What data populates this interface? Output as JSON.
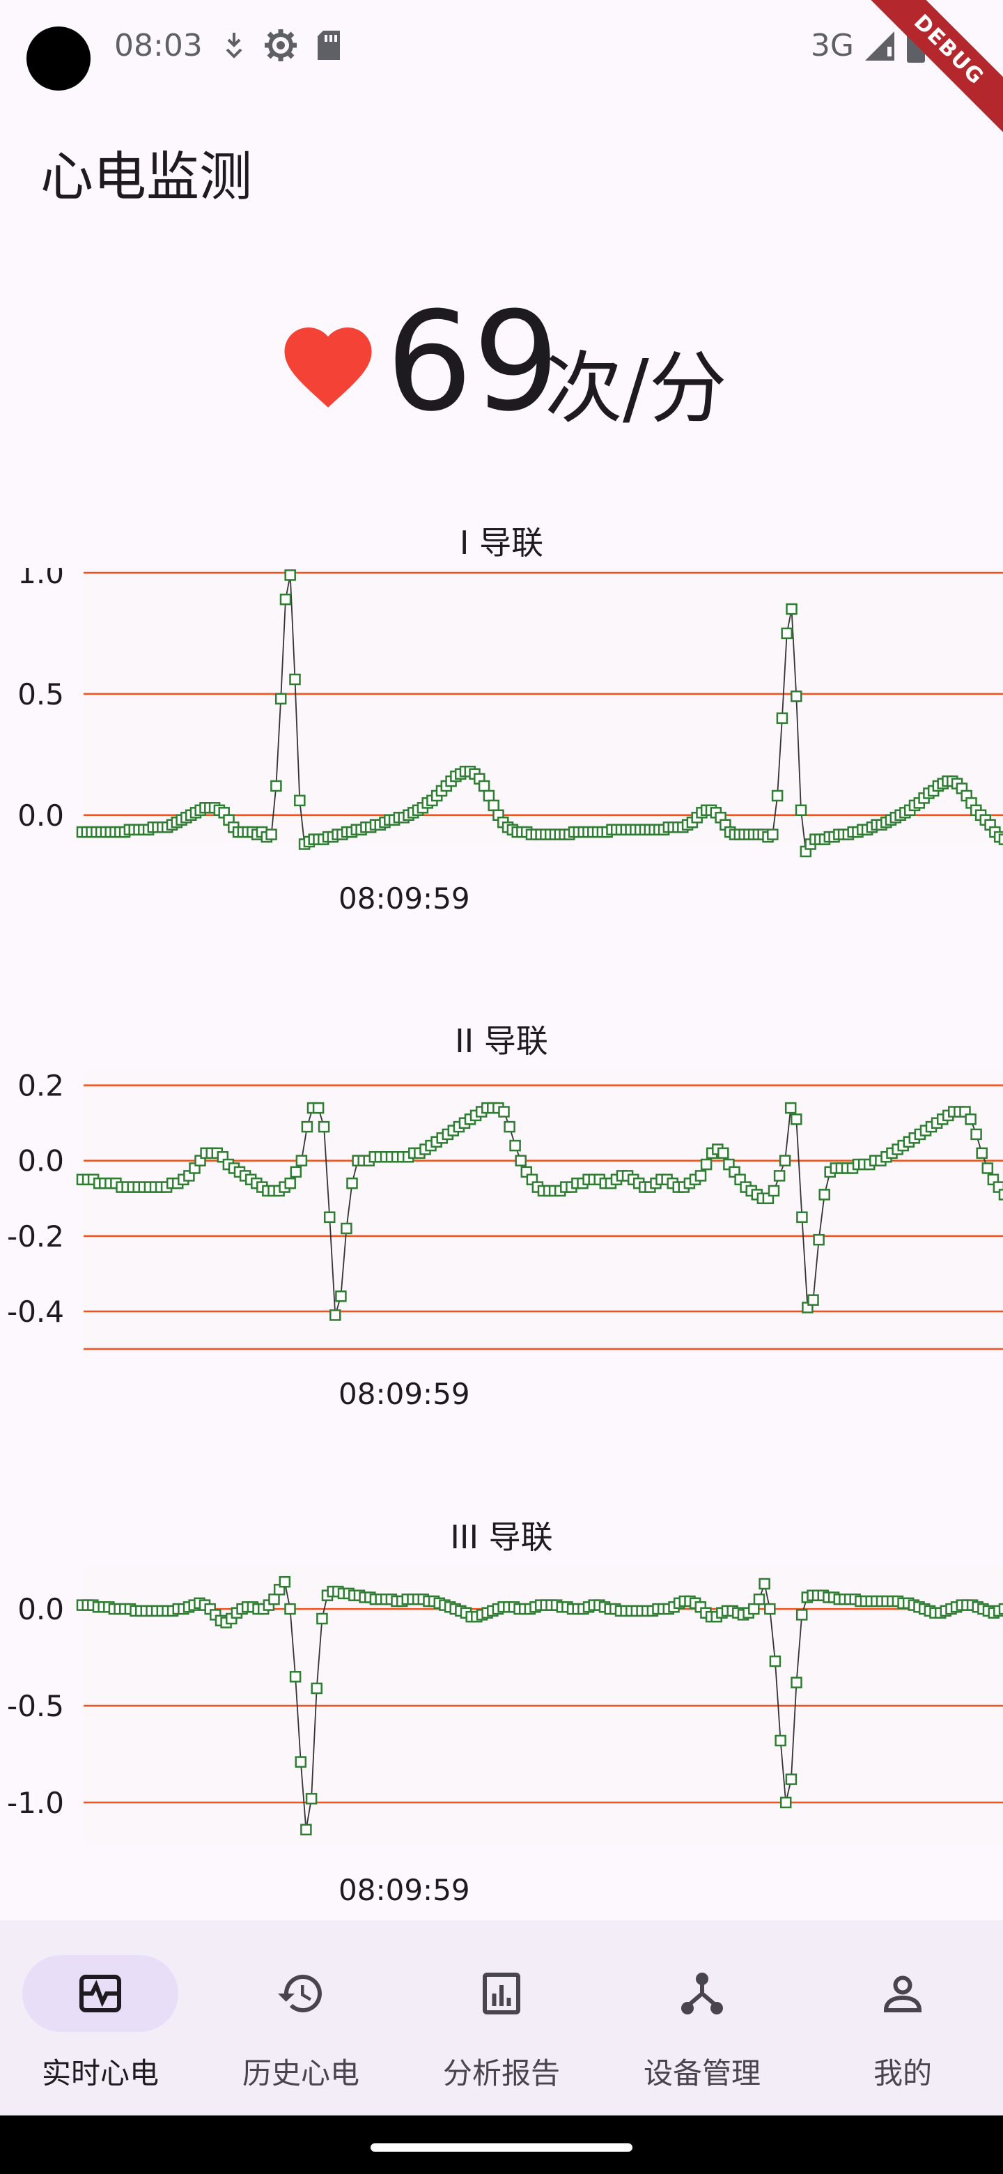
{
  "status_bar": {
    "time": "08:03",
    "network": "3G",
    "debug_banner": "DEBUG",
    "icons": [
      "download-icon",
      "settings-icon",
      "sd-card-icon",
      "signal-icon",
      "battery-icon"
    ]
  },
  "app": {
    "title": "心电监测"
  },
  "heart_rate": {
    "value": "69",
    "unit": "次/分",
    "icon": "heart-icon",
    "color": "#F44336"
  },
  "colors": {
    "series": "#2E7D32",
    "gridline": "#F4511E",
    "nav_active": "#E8DEF8",
    "nav_background": "#F3EDF7"
  },
  "chart_data": [
    {
      "type": "line",
      "title": "I 导联",
      "xlabel": "08:09:59",
      "y_ticks": [
        "1.0",
        "0.5",
        "0.0"
      ],
      "y_tick_values": [
        1.0,
        0.5,
        0.0
      ],
      "ylim": [
        -0.13,
        1.02
      ],
      "marker": "square",
      "series": [
        {
          "values": [
            -0.07,
            -0.07,
            -0.07,
            -0.07,
            -0.07,
            -0.07,
            -0.07,
            -0.07,
            -0.07,
            -0.07,
            -0.06,
            -0.06,
            -0.06,
            -0.06,
            -0.06,
            -0.05,
            -0.05,
            -0.05,
            -0.05,
            -0.04,
            -0.03,
            -0.02,
            -0.01,
            0.0,
            0.01,
            0.02,
            0.03,
            0.03,
            0.03,
            0.02,
            0.01,
            -0.02,
            -0.05,
            -0.07,
            -0.07,
            -0.07,
            -0.07,
            -0.08,
            -0.07,
            -0.09,
            -0.08,
            0.12,
            0.48,
            0.89,
            0.99,
            0.56,
            0.06,
            -0.12,
            -0.11,
            -0.1,
            -0.1,
            -0.1,
            -0.09,
            -0.09,
            -0.08,
            -0.08,
            -0.07,
            -0.07,
            -0.06,
            -0.06,
            -0.05,
            -0.05,
            -0.04,
            -0.04,
            -0.03,
            -0.02,
            -0.02,
            -0.01,
            -0.01,
            0.0,
            0.01,
            0.02,
            0.03,
            0.05,
            0.06,
            0.08,
            0.1,
            0.12,
            0.14,
            0.16,
            0.17,
            0.18,
            0.18,
            0.17,
            0.15,
            0.12,
            0.08,
            0.04,
            0.0,
            -0.03,
            -0.05,
            -0.06,
            -0.07,
            -0.07,
            -0.07,
            -0.08,
            -0.08,
            -0.08,
            -0.08,
            -0.08,
            -0.08,
            -0.08,
            -0.08,
            -0.08,
            -0.07,
            -0.07,
            -0.07,
            -0.07,
            -0.07,
            -0.07,
            -0.07,
            -0.07,
            -0.06,
            -0.06,
            -0.06,
            -0.06,
            -0.06,
            -0.06,
            -0.06,
            -0.06,
            -0.06,
            -0.06,
            -0.06,
            -0.06,
            -0.05,
            -0.05,
            -0.05,
            -0.05,
            -0.04,
            -0.03,
            -0.01,
            0.01,
            0.02,
            0.02,
            0.01,
            -0.01,
            -0.04,
            -0.07,
            -0.08,
            -0.08,
            -0.08,
            -0.08,
            -0.08,
            -0.08,
            -0.08,
            -0.09,
            -0.08,
            0.08,
            0.4,
            0.75,
            0.85,
            0.49,
            0.02,
            -0.15,
            -0.12,
            -0.1,
            -0.1,
            -0.1,
            -0.09,
            -0.09,
            -0.08,
            -0.08,
            -0.08,
            -0.07,
            -0.07,
            -0.06,
            -0.06,
            -0.05,
            -0.04,
            -0.04,
            -0.03,
            -0.02,
            -0.01,
            0.0,
            0.01,
            0.02,
            0.04,
            0.05,
            0.07,
            0.09,
            0.1,
            0.12,
            0.13,
            0.14,
            0.14,
            0.13,
            0.11,
            0.08,
            0.05,
            0.02,
            0.0,
            -0.02,
            -0.04,
            -0.07,
            -0.09,
            -0.1
          ]
        }
      ]
    },
    {
      "type": "line",
      "title": "II 导联",
      "xlabel": "08:09:59",
      "y_ticks": [
        "0.2",
        "0.0",
        "-0.2",
        "-0.4"
      ],
      "y_tick_values": [
        0.2,
        0.0,
        -0.2,
        -0.4
      ],
      "ylim": [
        -0.5,
        0.24
      ],
      "marker": "square",
      "series": [
        {
          "values": [
            -0.05,
            -0.05,
            -0.05,
            -0.06,
            -0.06,
            -0.06,
            -0.06,
            -0.07,
            -0.07,
            -0.07,
            -0.07,
            -0.07,
            -0.07,
            -0.07,
            -0.07,
            -0.07,
            -0.06,
            -0.06,
            -0.05,
            -0.04,
            -0.02,
            0.0,
            0.02,
            0.02,
            0.02,
            0.01,
            -0.01,
            -0.02,
            -0.03,
            -0.04,
            -0.05,
            -0.06,
            -0.07,
            -0.08,
            -0.08,
            -0.08,
            -0.07,
            -0.06,
            -0.03,
            0.0,
            0.09,
            0.14,
            0.14,
            0.09,
            -0.15,
            -0.41,
            -0.36,
            -0.18,
            -0.06,
            0.0,
            0.0,
            0.0,
            0.01,
            0.01,
            0.01,
            0.01,
            0.01,
            0.01,
            0.01,
            0.02,
            0.02,
            0.03,
            0.04,
            0.05,
            0.06,
            0.07,
            0.08,
            0.09,
            0.1,
            0.11,
            0.12,
            0.13,
            0.14,
            0.14,
            0.14,
            0.13,
            0.09,
            0.04,
            0.0,
            -0.03,
            -0.05,
            -0.07,
            -0.08,
            -0.08,
            -0.08,
            -0.08,
            -0.07,
            -0.07,
            -0.06,
            -0.06,
            -0.05,
            -0.05,
            -0.05,
            -0.06,
            -0.06,
            -0.05,
            -0.04,
            -0.04,
            -0.05,
            -0.06,
            -0.07,
            -0.07,
            -0.06,
            -0.05,
            -0.05,
            -0.06,
            -0.07,
            -0.07,
            -0.06,
            -0.05,
            -0.04,
            -0.01,
            0.02,
            0.03,
            0.02,
            -0.01,
            -0.03,
            -0.05,
            -0.07,
            -0.08,
            -0.09,
            -0.1,
            -0.1,
            -0.08,
            -0.04,
            0.0,
            0.14,
            0.11,
            -0.15,
            -0.39,
            -0.37,
            -0.21,
            -0.09,
            -0.03,
            -0.02,
            -0.02,
            -0.02,
            -0.02,
            -0.01,
            -0.01,
            -0.01,
            0.0,
            0.0,
            0.01,
            0.02,
            0.03,
            0.04,
            0.05,
            0.06,
            0.07,
            0.08,
            0.09,
            0.1,
            0.11,
            0.12,
            0.13,
            0.13,
            0.13,
            0.11,
            0.07,
            0.02,
            -0.02,
            -0.05,
            -0.07,
            -0.09
          ]
        }
      ]
    },
    {
      "type": "line",
      "title": "III 导联",
      "xlabel": "08:09:59",
      "y_ticks": [
        "0.0",
        "-0.5",
        "-1.0"
      ],
      "y_tick_values": [
        0.0,
        -0.5,
        -1.0
      ],
      "ylim": [
        -1.22,
        0.22
      ],
      "marker": "square",
      "series": [
        {
          "values": [
            0.02,
            0.02,
            0.02,
            0.01,
            0.01,
            0.01,
            0.0,
            0.0,
            0.0,
            0.0,
            -0.01,
            -0.01,
            -0.01,
            -0.01,
            -0.01,
            -0.01,
            -0.01,
            -0.01,
            0.0,
            0.0,
            0.01,
            0.02,
            0.03,
            0.02,
            0.0,
            -0.03,
            -0.06,
            -0.07,
            -0.05,
            -0.02,
            0.0,
            0.01,
            0.01,
            0.0,
            0.0,
            0.02,
            0.05,
            0.1,
            0.14,
            0.0,
            -0.35,
            -0.79,
            -1.14,
            -0.98,
            -0.41,
            -0.05,
            0.07,
            0.09,
            0.09,
            0.08,
            0.08,
            0.07,
            0.07,
            0.06,
            0.06,
            0.05,
            0.05,
            0.05,
            0.05,
            0.04,
            0.04,
            0.05,
            0.05,
            0.05,
            0.05,
            0.04,
            0.04,
            0.03,
            0.02,
            0.01,
            0.0,
            -0.01,
            -0.02,
            -0.04,
            -0.04,
            -0.03,
            -0.02,
            -0.01,
            0.0,
            0.01,
            0.01,
            0.01,
            0.0,
            0.0,
            0.0,
            0.01,
            0.02,
            0.02,
            0.02,
            0.02,
            0.01,
            0.01,
            0.0,
            0.0,
            0.0,
            0.01,
            0.02,
            0.02,
            0.01,
            0.0,
            0.0,
            -0.01,
            -0.01,
            -0.01,
            -0.01,
            -0.01,
            -0.01,
            -0.01,
            0.0,
            0.0,
            0.0,
            0.01,
            0.03,
            0.04,
            0.04,
            0.03,
            0.01,
            -0.02,
            -0.04,
            -0.04,
            -0.02,
            -0.01,
            -0.01,
            -0.02,
            -0.03,
            -0.02,
            0.0,
            0.05,
            0.13,
            0.0,
            -0.27,
            -0.68,
            -1.0,
            -0.88,
            -0.38,
            -0.03,
            0.06,
            0.07,
            0.07,
            0.07,
            0.06,
            0.06,
            0.05,
            0.05,
            0.05,
            0.05,
            0.04,
            0.04,
            0.04,
            0.04,
            0.04,
            0.04,
            0.04,
            0.04,
            0.03,
            0.03,
            0.02,
            0.01,
            0.0,
            -0.01,
            -0.02,
            -0.02,
            -0.01,
            0.0,
            0.01,
            0.02,
            0.02,
            0.02,
            0.01,
            0.0,
            -0.01,
            -0.02,
            -0.01,
            0.0
          ]
        }
      ]
    }
  ],
  "bottom_nav": {
    "items": [
      {
        "label": "实时心电",
        "icon": "ecg-monitor-icon",
        "active": true
      },
      {
        "label": "历史心电",
        "icon": "history-icon",
        "active": false
      },
      {
        "label": "分析报告",
        "icon": "analytics-icon",
        "active": false
      },
      {
        "label": "设备管理",
        "icon": "device-hub-icon",
        "active": false
      },
      {
        "label": "我的",
        "icon": "person-icon",
        "active": false
      }
    ]
  }
}
